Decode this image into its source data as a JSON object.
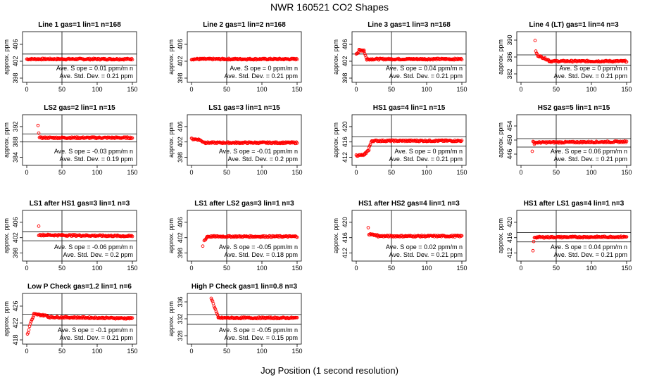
{
  "title": "NWR  160521  CO2 Shapes",
  "xlabel": "Jog Position (1 second resolution)",
  "ylabel": "approx. ppm",
  "colors": {
    "points": "#ff0000",
    "axes": "#000000"
  },
  "chart_data": [
    {
      "type": "scatter",
      "title": "Line 1 gas=1 lin=1 n=168",
      "xlim": [
        0,
        150
      ],
      "ylim": [
        398,
        408
      ],
      "yticks": [
        398,
        402,
        406
      ],
      "xticks": [
        0,
        50,
        100,
        150
      ],
      "hlines": [
        403.7,
        401.1
      ],
      "vline": 50,
      "slope_text": "Ave. S ope =  0.01  ppm/m n",
      "sd_text": "Ave. Std. Dev. =  0.21  ppm",
      "segments": [
        [
          0,
          150,
          402.5,
          402.5
        ]
      ],
      "specials": []
    },
    {
      "type": "scatter",
      "title": "Line 2 gas=1 lin=2 n=168",
      "xlim": [
        0,
        150
      ],
      "ylim": [
        398,
        408
      ],
      "yticks": [
        398,
        402,
        406
      ],
      "xticks": [
        0,
        50,
        100,
        150
      ],
      "hlines": [
        null
      ],
      "vline": 50,
      "slope_text": "Ave. S ope =  0  ppm/m n",
      "sd_text": "Ave. Std. Dev. =  0.21  ppm",
      "segments": [
        [
          0,
          150,
          402.5,
          402.5
        ]
      ],
      "specials": []
    },
    {
      "type": "scatter",
      "title": "Line 3 gas=1 lin=3 n=168",
      "xlim": [
        0,
        150
      ],
      "ylim": [
        398,
        408
      ],
      "yticks": [
        398,
        402,
        406
      ],
      "xticks": [
        0,
        50,
        100,
        150
      ],
      "hlines": [
        403.7,
        401.1
      ],
      "vline": 50,
      "slope_text": "Ave. S ope =  0.04  ppm/m n",
      "sd_text": "Ave. Std. Dev. =  0.21  ppm",
      "segments": [
        [
          0,
          4,
          403.8,
          404.3
        ],
        [
          4,
          11,
          404.6,
          404.6
        ],
        [
          11,
          15,
          404.4,
          402.4
        ],
        [
          15,
          150,
          402.5,
          402.5
        ]
      ],
      "specials": []
    },
    {
      "type": "scatter",
      "title": "Line 4 (LT) gas=1 lin=4 n=3",
      "xlim": [
        0,
        150
      ],
      "ylim": [
        381,
        391
      ],
      "yticks": [
        382,
        386,
        390
      ],
      "xticks": [
        0,
        50,
        100,
        150
      ],
      "hlines": [
        386.5,
        384.0
      ],
      "vline": 50,
      "slope_text": "Ave. S ope =  0  ppm/m n",
      "sd_text": "Ave. Std. Dev. =  0.21  ppm",
      "segments": [
        [
          25,
          40,
          386.3,
          385.2
        ],
        [
          40,
          150,
          385.0,
          385.0
        ]
      ],
      "specials": [
        [
          20,
          389.9
        ],
        [
          21,
          387.4
        ],
        [
          22,
          386.9
        ],
        [
          23,
          386.7
        ],
        [
          24,
          386.2
        ]
      ]
    },
    {
      "type": "scatter",
      "title": "LS2 gas=2 lin=1 n=15",
      "xlim": [
        0,
        150
      ],
      "ylim": [
        383,
        394
      ],
      "yticks": [
        384,
        388,
        392
      ],
      "xticks": [
        0,
        50,
        100,
        150
      ],
      "hlines": [
        390.1,
        388.0
      ],
      "vline": 50,
      "slope_text": "Ave. S ope =  -0.03  ppm/m n",
      "sd_text": "Ave. Std. Dev. =  0.19  ppm",
      "segments": [
        [
          18,
          150,
          389.1,
          389.1
        ]
      ],
      "specials": [
        [
          16,
          392.3
        ],
        [
          17,
          390.3
        ]
      ]
    },
    {
      "type": "scatter",
      "title": "LS1 gas=3 lin=1 n=15",
      "xlim": [
        0,
        150
      ],
      "ylim": [
        397,
        408
      ],
      "yticks": [
        398,
        402,
        406
      ],
      "xticks": [
        0,
        50,
        100,
        150
      ],
      "hlines": [
        null
      ],
      "vline": 50,
      "slope_text": "Ave. S ope =  -0.01  ppm/m n",
      "sd_text": "Ave. Std. Dev. =  0.2  ppm",
      "segments": [
        [
          0,
          12,
          402.8,
          402.6
        ],
        [
          12,
          20,
          402.4,
          401.8
        ],
        [
          20,
          150,
          401.8,
          401.8
        ]
      ],
      "specials": []
    },
    {
      "type": "scatter",
      "title": "HS1 gas=4 lin=1 n=15",
      "xlim": [
        0,
        150
      ],
      "ylim": [
        411,
        422
      ],
      "yticks": [
        412,
        416,
        420
      ],
      "xticks": [
        0,
        50,
        100,
        150
      ],
      "hlines": [
        417.3,
        414.9
      ],
      "vline": 50,
      "slope_text": "Ave. S ope =  0  ppm/m n",
      "sd_text": "Ave. Std. Dev. =  0.21  ppm",
      "segments": [
        [
          0,
          12,
          412.5,
          412.6
        ],
        [
          12,
          18,
          412.8,
          414.0
        ],
        [
          18,
          22,
          414.5,
          416.2
        ],
        [
          22,
          150,
          416.3,
          416.3
        ]
      ],
      "specials": []
    },
    {
      "type": "scatter",
      "title": "HS2 gas=5 lin=1 n=15",
      "xlim": [
        0,
        150
      ],
      "ylim": [
        444,
        456
      ],
      "yticks": [
        446,
        450,
        454
      ],
      "xticks": [
        0,
        50,
        100,
        150
      ],
      "hlines": [
        450.4,
        448.0
      ],
      "vline": 50,
      "slope_text": "Ave. S ope =  0.06  ppm/m n",
      "sd_text": "Ave. Std. Dev. =  0.21  ppm",
      "segments": [
        [
          18,
          150,
          449.3,
          449.5
        ]
      ],
      "specials": [
        [
          16,
          446.8
        ],
        [
          17,
          449.6
        ],
        [
          19,
          448.8
        ]
      ]
    },
    {
      "type": "scatter",
      "title": "LS1 after HS1 gas=3 lin=1 n=3",
      "xlim": [
        0,
        150
      ],
      "ylim": [
        397,
        408
      ],
      "yticks": [
        398,
        402,
        406
      ],
      "xticks": [
        0,
        50,
        100,
        150
      ],
      "hlines": [
        403.5,
        401.2
      ],
      "vline": 50,
      "slope_text": "Ave. S ope =  -0.06  ppm/m n",
      "sd_text": "Ave. Std. Dev. =  0.2  ppm",
      "segments": [
        [
          17,
          150,
          402.7,
          402.4
        ]
      ],
      "specials": [
        [
          17,
          405.0
        ]
      ]
    },
    {
      "type": "scatter",
      "title": "LS1 after LS2 gas=3 lin=1 n=3",
      "xlim": [
        0,
        150
      ],
      "ylim": [
        397,
        408
      ],
      "yticks": [
        398,
        402,
        406
      ],
      "xticks": [
        0,
        50,
        100,
        150
      ],
      "hlines": [
        null
      ],
      "vline": 50,
      "slope_text": "Ave. S ope =  -0.05  ppm/m n",
      "sd_text": "Ave. Std. Dev. =  0.18  ppm",
      "segments": [
        [
          18,
          22,
          401.2,
          402.1
        ],
        [
          22,
          150,
          402.3,
          402.3
        ]
      ],
      "specials": [
        [
          16,
          399.8
        ]
      ]
    },
    {
      "type": "scatter",
      "title": "HS1 after HS2 gas=4 lin=1 n=3",
      "xlim": [
        0,
        150
      ],
      "ylim": [
        411,
        422
      ],
      "yticks": [
        412,
        416,
        420
      ],
      "xticks": [
        0,
        50,
        100,
        150
      ],
      "hlines": [
        null
      ],
      "vline": 50,
      "slope_text": "Ave. S ope =  0.02  ppm/m n",
      "sd_text": "Ave. Std. Dev. =  0.21  ppm",
      "segments": [
        [
          18,
          30,
          416.9,
          416.6
        ],
        [
          30,
          150,
          416.4,
          416.4
        ]
      ],
      "specials": [
        [
          17,
          418.6
        ]
      ]
    },
    {
      "type": "scatter",
      "title": "HS1 after LS1 gas=4 lin=1 n=3",
      "xlim": [
        0,
        150
      ],
      "ylim": [
        411,
        422
      ],
      "yticks": [
        412,
        416,
        420
      ],
      "xticks": [
        0,
        50,
        100,
        150
      ],
      "hlines": [
        417.3,
        414.9
      ],
      "vline": 50,
      "slope_text": "Ave. S ope =  0.04  ppm/m n",
      "sd_text": "Ave. Std. Dev. =  0.21  ppm",
      "segments": [
        [
          19,
          150,
          416.1,
          416.2
        ]
      ],
      "specials": [
        [
          17,
          412.6
        ],
        [
          18,
          415.0
        ]
      ]
    },
    {
      "type": "scatter",
      "title": "Low P Check gas=1.2 lin=1 n=6",
      "xlim": [
        0,
        150
      ],
      "ylim": [
        418,
        428
      ],
      "yticks": [
        418,
        422,
        426
      ],
      "xticks": [
        0,
        50,
        100,
        150
      ],
      "hlines": [
        424.1,
        421.5
      ],
      "vline": 50,
      "slope_text": "Ave. S ope =  -0.1  ppm/m n",
      "sd_text": "Ave. Std. Dev. =  0.21  ppm",
      "segments": [
        [
          5,
          10,
          421.9,
          423.7
        ],
        [
          10,
          30,
          424.1,
          423.7
        ],
        [
          30,
          150,
          423.4,
          423.1
        ]
      ],
      "specials": [
        [
          1,
          419.4
        ],
        [
          2,
          419.7
        ],
        [
          3,
          420.4
        ],
        [
          4,
          421.2
        ]
      ]
    },
    {
      "type": "scatter",
      "title": "High P Check gas=1 lin=0.8 n=3",
      "xlim": [
        0,
        150
      ],
      "ylim": [
        327,
        337
      ],
      "yticks": [
        328,
        332,
        336
      ],
      "xticks": [
        0,
        50,
        100,
        150
      ],
      "hlines": [
        333.0,
        330.7
      ],
      "vline": 50,
      "slope_text": "Ave. S ope =  -0.05  ppm/m n",
      "sd_text": "Ave. Std. Dev. =  0.15  ppm",
      "segments": [
        [
          28,
          38,
          337.0,
          332.3
        ],
        [
          38,
          150,
          332.2,
          332.2
        ]
      ],
      "specials": []
    }
  ]
}
